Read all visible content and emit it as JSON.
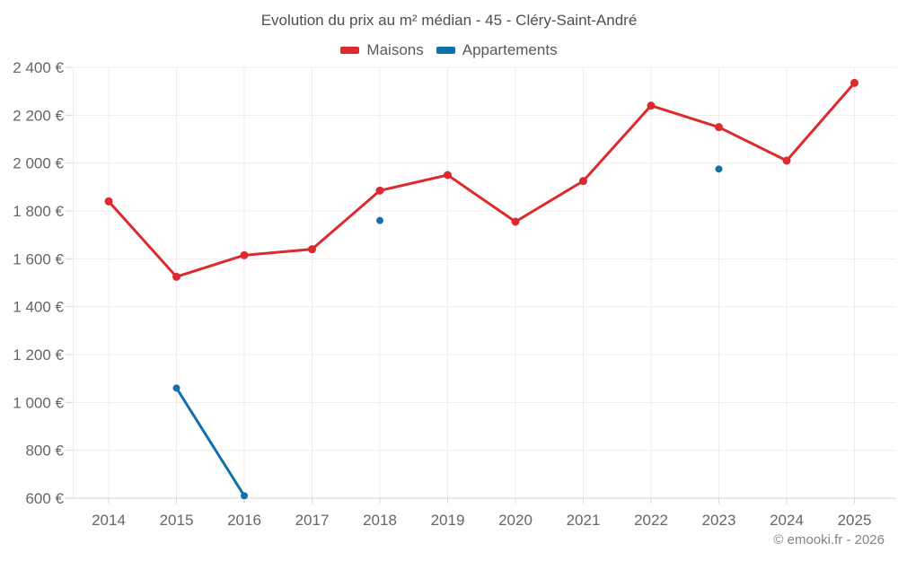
{
  "header": {
    "title": "Evolution du prix au m² médian - 45 - Cléry-Saint-André"
  },
  "footer": {
    "copyright": "© emooki.fr - 2026"
  },
  "style": {
    "background": "#ffffff",
    "grid_color": "#ececec",
    "axis_color": "#d6d6d6",
    "title_color": "#4f4f4f",
    "axis_label_color": "#666666",
    "copyright_color": "#848484"
  },
  "chart_data": {
    "type": "line",
    "title": "Evolution du prix au m² médian - 45 - Cléry-Saint-André",
    "xlabel": "",
    "ylabel": "",
    "categories": [
      2014,
      2015,
      2016,
      2017,
      2018,
      2019,
      2020,
      2021,
      2022,
      2023,
      2024,
      2025
    ],
    "series": [
      {
        "name": "Maisons",
        "color": "#dc2a2e",
        "values": [
          1840,
          1525,
          1615,
          1640,
          1885,
          1950,
          1755,
          1925,
          2240,
          2150,
          2010,
          2335
        ]
      },
      {
        "name": "Appartements",
        "color": "#1470ab",
        "values": [
          null,
          1060,
          610,
          null,
          1760,
          null,
          null,
          null,
          null,
          1975,
          null,
          null
        ]
      }
    ],
    "ylim": [
      600,
      2400
    ],
    "ytick_step": 200,
    "ytick_suffix": " €",
    "grid": true,
    "legend_position": "top"
  }
}
